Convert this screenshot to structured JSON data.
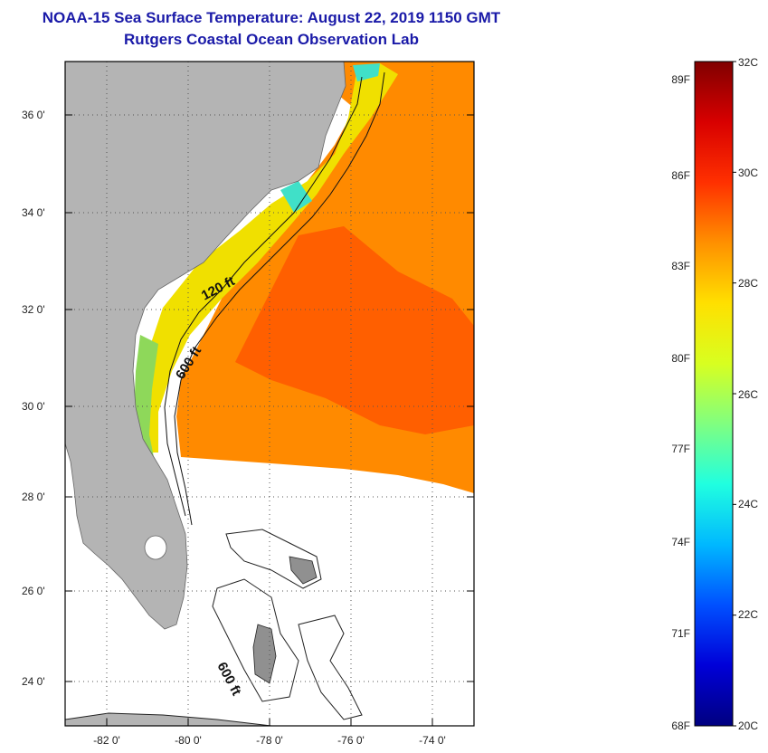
{
  "header": {
    "title": "NOAA-15 Sea Surface Temperature:  August 22, 2019 1150 GMT",
    "subtitle": "Rutgers Coastal Ocean Observation Lab"
  },
  "map": {
    "lat_labels": [
      "36 0'",
      "34 0'",
      "32 0'",
      "30 0'",
      "28 0'",
      "26 0'",
      "24 0'"
    ],
    "lon_labels": [
      "-82 0'",
      "-80 0'",
      "-78 0'",
      "-76 0'",
      "-74 0'"
    ],
    "contour_labels": [
      "120 ft",
      "600 ft",
      "600 ft"
    ],
    "land_color": "#b4b4b4",
    "no_data_color": "#ffffff"
  },
  "colorbar": {
    "fahrenheit_labels": [
      "89F",
      "86F",
      "83F",
      "80F",
      "77F",
      "74F",
      "71F",
      "68F"
    ],
    "celsius_labels": [
      "32C",
      "30C",
      "28C",
      "26C",
      "24C",
      "22C",
      "20C"
    ],
    "colors_bottom_to_top": [
      "#000080",
      "#0000d8",
      "#0050ff",
      "#00b8ff",
      "#20ffe0",
      "#80ff80",
      "#d8ff20",
      "#ffe000",
      "#ff9000",
      "#ff3000",
      "#d80000",
      "#800000"
    ]
  }
}
